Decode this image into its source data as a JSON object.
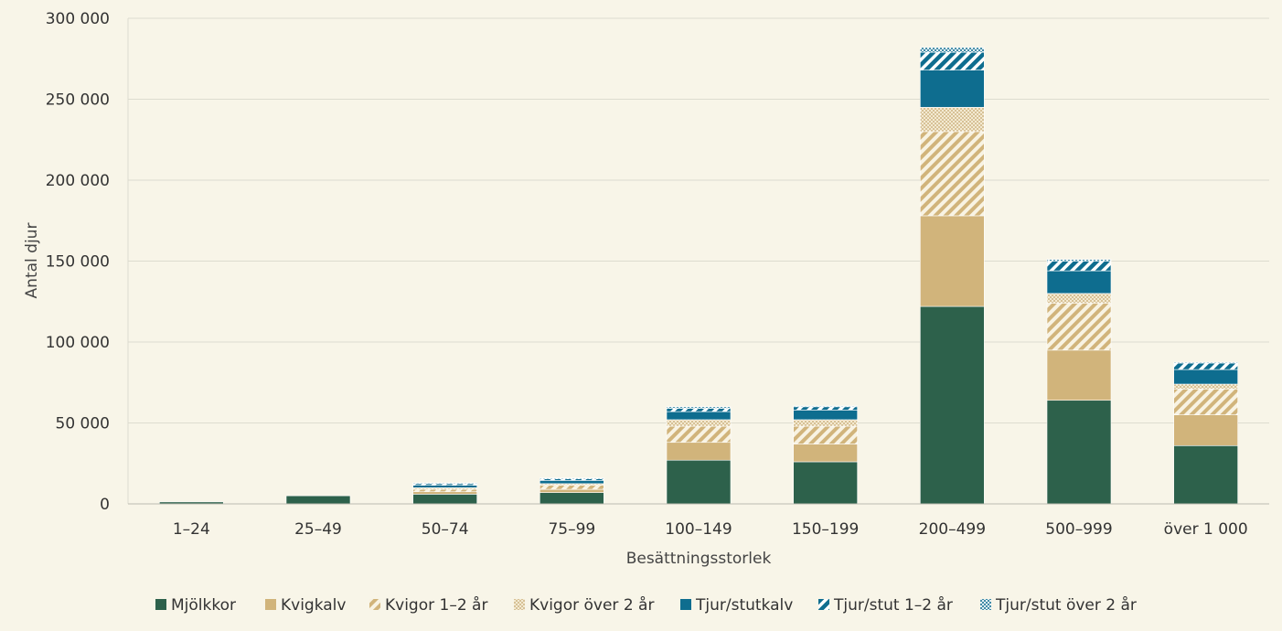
{
  "chart_data": {
    "type": "bar",
    "stacked": true,
    "xlabel": "Besättningsstorlek",
    "ylabel": "Antal djur",
    "ylim": [
      0,
      300000
    ],
    "yticks": [
      0,
      50000,
      100000,
      150000,
      200000,
      250000,
      300000
    ],
    "ytick_labels": [
      "0",
      "50 000",
      "100 000",
      "150 000",
      "200 000",
      "250 000",
      "300 000"
    ],
    "grid": true,
    "legend_position": "bottom",
    "categories": [
      "1–24",
      "25–49",
      "50–74",
      "75–99",
      "100–149",
      "150–199",
      "200–499",
      "500–999",
      "över 1 000"
    ],
    "series": [
      {
        "name": "Mjölkkor",
        "color": "#2d614b",
        "pattern": "solid",
        "values": [
          1200,
          5000,
          6000,
          7000,
          27000,
          26000,
          122000,
          64000,
          36000
        ]
      },
      {
        "name": "Kvigkalv",
        "color": "#d1b47b",
        "pattern": "solid",
        "values": [
          0,
          0,
          1500,
          2000,
          11000,
          11000,
          56000,
          31000,
          19000
        ]
      },
      {
        "name": "Kvigor 1–2 år",
        "color": "#d1b47b",
        "pattern": "diagonal-stripes",
        "values": [
          0,
          0,
          1500,
          2500,
          10000,
          11000,
          52000,
          29000,
          16000
        ]
      },
      {
        "name": "Kvigor över 2 år",
        "color": "#d1b47b",
        "pattern": "dots",
        "values": [
          0,
          0,
          1000,
          1000,
          4000,
          4000,
          15000,
          6000,
          3000
        ]
      },
      {
        "name": "Tjur/stutkalv",
        "color": "#0e6d8f",
        "pattern": "solid",
        "values": [
          0,
          0,
          1500,
          2000,
          5000,
          6000,
          23000,
          14000,
          9000
        ]
      },
      {
        "name": "Tjur/stut 1–2 år",
        "color": "#0e6d8f",
        "pattern": "diagonal-stripes",
        "values": [
          0,
          0,
          1000,
          1000,
          2000,
          2000,
          11000,
          6000,
          4000
        ]
      },
      {
        "name": "Tjur/stut över 2 år",
        "color": "#0e6d8f",
        "pattern": "dots",
        "values": [
          0,
          0,
          500,
          500,
          1000,
          500,
          3000,
          1000,
          500
        ]
      }
    ]
  }
}
